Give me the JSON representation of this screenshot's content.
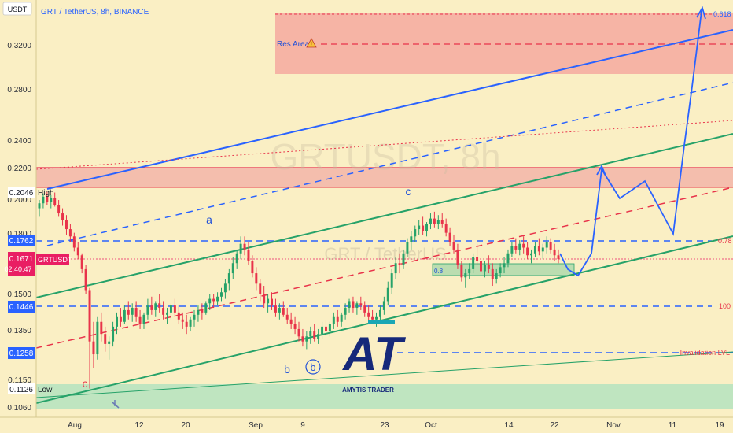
{
  "header": {
    "currency_badge": "USDT",
    "symbol_title": "GRT / TetherUS, 8h, BINANCE"
  },
  "watermark": {
    "big": "GRTUSDT, 8h",
    "small": "GRT / TetherUS"
  },
  "logo": {
    "monogram": "AT",
    "brand": "AMYTIS TRADER"
  },
  "price_axis": {
    "ticks": [
      "0.3200",
      "0.2800",
      "0.2400",
      "0.2200",
      "0.2000",
      "0.1800",
      "0.1500",
      "0.1350",
      "0.1150",
      "0.1060"
    ],
    "labels": [
      {
        "name": "high-price-label",
        "value": "0.2046",
        "caption": "High"
      },
      {
        "name": "fib-078-price-label",
        "value": "0.1762"
      },
      {
        "name": "current-price-label",
        "value": "0.1671",
        "caption": "GRTUSDT",
        "countdown": "02:40:47"
      },
      {
        "name": "fib-100-price-label",
        "value": "0.1446"
      },
      {
        "name": "invalidation-price-label",
        "value": "0.1258"
      },
      {
        "name": "low-price-label",
        "value": "0.1126",
        "caption": "Low"
      }
    ]
  },
  "time_axis": {
    "ticks": [
      "Aug",
      "12",
      "20",
      "Sep",
      "9",
      "23",
      "Oct",
      "14",
      "22",
      "Nov",
      "11",
      "19"
    ]
  },
  "annotations": {
    "res_area": "Res Area",
    "fib_618": "0.618",
    "fib_078": "0.78",
    "fib_100": "100",
    "invalidation": "Invalidation LVL",
    "wave_a": "a",
    "wave_b": "b",
    "wave_b_circled": "b",
    "wave_c_upper": "c",
    "wave_c_lower": "c",
    "box_label": "0.8"
  },
  "colors": {
    "background": "#faefc4",
    "resistance_zone": "#f4a9a0",
    "upper_zone": "#f3b1a7",
    "support_zone": "#b8e3c0",
    "price_tag": "#e91e63",
    "blue": "#2962ff",
    "green": "#26a269",
    "red": "#e8334a"
  },
  "chart_data": {
    "type": "candlestick",
    "symbol": "GRT / TetherUS",
    "interval": "8h",
    "exchange": "BINANCE",
    "quote_currency": "USDT",
    "price_range": [
      0.106,
      0.335
    ],
    "scale": "log",
    "x_ticks": [
      "Aug",
      "12",
      "20",
      "Sep",
      "9",
      "23",
      "Oct",
      "14",
      "22",
      "Nov",
      "11",
      "19"
    ],
    "y_ticks": [
      0.32,
      0.28,
      0.24,
      0.22,
      0.2,
      0.18,
      0.15,
      0.135,
      0.115,
      0.106
    ],
    "high": 0.2046,
    "low": 0.1126,
    "current_price": 0.1671,
    "levels": [
      {
        "name": "fib-0.618",
        "label": "0.618",
        "price": 0.333
      },
      {
        "name": "fib-0.78",
        "label": "0.78",
        "price": 0.1762
      },
      {
        "name": "fib-100",
        "label": "100",
        "price": 0.1446
      },
      {
        "name": "invalidation",
        "label": "Invalidation LVL",
        "price": 0.1258
      }
    ],
    "waves": [
      "a",
      "b",
      "c"
    ],
    "candles": [
      [
        0.195,
        0.2,
        0.19,
        0.198
      ],
      [
        0.198,
        0.204,
        0.195,
        0.202
      ],
      [
        0.202,
        0.205,
        0.197,
        0.199
      ],
      [
        0.199,
        0.203,
        0.195,
        0.201
      ],
      [
        0.201,
        0.2046,
        0.196,
        0.197
      ],
      [
        0.197,
        0.2,
        0.19,
        0.192
      ],
      [
        0.192,
        0.195,
        0.185,
        0.188
      ],
      [
        0.188,
        0.191,
        0.18,
        0.183
      ],
      [
        0.183,
        0.186,
        0.176,
        0.179
      ],
      [
        0.179,
        0.181,
        0.171,
        0.173
      ],
      [
        0.173,
        0.176,
        0.167,
        0.169
      ],
      [
        0.169,
        0.17,
        0.16,
        0.162
      ],
      [
        0.162,
        0.164,
        0.15,
        0.152
      ],
      [
        0.152,
        0.153,
        0.1126,
        0.13
      ],
      [
        0.13,
        0.138,
        0.12,
        0.125
      ],
      [
        0.125,
        0.14,
        0.123,
        0.138
      ],
      [
        0.138,
        0.142,
        0.13,
        0.133
      ],
      [
        0.133,
        0.136,
        0.126,
        0.129
      ],
      [
        0.129,
        0.132,
        0.123,
        0.13
      ],
      [
        0.13,
        0.138,
        0.128,
        0.136
      ],
      [
        0.136,
        0.142,
        0.133,
        0.14
      ],
      [
        0.14,
        0.144,
        0.136,
        0.138
      ],
      [
        0.138,
        0.145,
        0.137,
        0.143
      ],
      [
        0.143,
        0.147,
        0.139,
        0.141
      ],
      [
        0.141,
        0.146,
        0.138,
        0.144
      ],
      [
        0.144,
        0.147,
        0.138,
        0.14
      ],
      [
        0.14,
        0.143,
        0.135,
        0.137
      ],
      [
        0.137,
        0.142,
        0.135,
        0.141
      ],
      [
        0.141,
        0.148,
        0.139,
        0.145
      ],
      [
        0.145,
        0.149,
        0.141,
        0.143
      ],
      [
        0.143,
        0.147,
        0.14,
        0.146
      ],
      [
        0.146,
        0.15,
        0.142,
        0.144
      ],
      [
        0.144,
        0.147,
        0.139,
        0.141
      ],
      [
        0.141,
        0.144,
        0.137,
        0.142
      ],
      [
        0.142,
        0.146,
        0.139,
        0.145
      ],
      [
        0.145,
        0.148,
        0.14,
        0.142
      ],
      [
        0.142,
        0.145,
        0.137,
        0.139
      ],
      [
        0.139,
        0.142,
        0.135,
        0.138
      ],
      [
        0.138,
        0.141,
        0.133,
        0.136
      ],
      [
        0.136,
        0.14,
        0.134,
        0.139
      ],
      [
        0.139,
        0.143,
        0.136,
        0.141
      ],
      [
        0.141,
        0.145,
        0.138,
        0.143
      ],
      [
        0.143,
        0.146,
        0.139,
        0.142
      ],
      [
        0.142,
        0.147,
        0.141,
        0.146
      ],
      [
        0.146,
        0.15,
        0.143,
        0.148
      ],
      [
        0.148,
        0.15,
        0.144,
        0.147
      ],
      [
        0.147,
        0.151,
        0.145,
        0.149
      ],
      [
        0.149,
        0.153,
        0.147,
        0.151
      ],
      [
        0.151,
        0.157,
        0.148,
        0.155
      ],
      [
        0.155,
        0.162,
        0.152,
        0.16
      ],
      [
        0.16,
        0.168,
        0.157,
        0.165
      ],
      [
        0.165,
        0.172,
        0.162,
        0.17
      ],
      [
        0.17,
        0.179,
        0.167,
        0.175
      ],
      [
        0.175,
        0.179,
        0.169,
        0.172
      ],
      [
        0.172,
        0.176,
        0.164,
        0.166
      ],
      [
        0.166,
        0.169,
        0.158,
        0.16
      ],
      [
        0.16,
        0.163,
        0.152,
        0.155
      ],
      [
        0.155,
        0.157,
        0.147,
        0.15
      ],
      [
        0.15,
        0.154,
        0.144,
        0.146
      ],
      [
        0.146,
        0.15,
        0.142,
        0.148
      ],
      [
        0.148,
        0.151,
        0.143,
        0.145
      ],
      [
        0.145,
        0.148,
        0.14,
        0.142
      ],
      [
        0.142,
        0.146,
        0.139,
        0.144
      ],
      [
        0.144,
        0.147,
        0.14,
        0.141
      ],
      [
        0.141,
        0.144,
        0.137,
        0.139
      ],
      [
        0.139,
        0.142,
        0.135,
        0.137
      ],
      [
        0.137,
        0.14,
        0.133,
        0.135
      ],
      [
        0.135,
        0.138,
        0.13,
        0.132
      ],
      [
        0.132,
        0.135,
        0.128,
        0.13
      ],
      [
        0.13,
        0.134,
        0.127,
        0.132
      ],
      [
        0.132,
        0.136,
        0.129,
        0.134
      ],
      [
        0.134,
        0.137,
        0.13,
        0.131
      ],
      [
        0.131,
        0.135,
        0.129,
        0.133
      ],
      [
        0.133,
        0.138,
        0.131,
        0.136
      ],
      [
        0.136,
        0.139,
        0.132,
        0.134
      ],
      [
        0.134,
        0.138,
        0.132,
        0.137
      ],
      [
        0.137,
        0.142,
        0.135,
        0.14
      ],
      [
        0.14,
        0.143,
        0.136,
        0.138
      ],
      [
        0.138,
        0.142,
        0.136,
        0.141
      ],
      [
        0.141,
        0.146,
        0.139,
        0.144
      ],
      [
        0.144,
        0.148,
        0.142,
        0.147
      ],
      [
        0.147,
        0.149,
        0.142,
        0.144
      ],
      [
        0.144,
        0.147,
        0.141,
        0.146
      ],
      [
        0.146,
        0.149,
        0.143,
        0.145
      ],
      [
        0.145,
        0.147,
        0.14,
        0.142
      ],
      [
        0.142,
        0.145,
        0.138,
        0.14
      ],
      [
        0.14,
        0.143,
        0.137,
        0.139
      ],
      [
        0.139,
        0.142,
        0.136,
        0.14
      ],
      [
        0.14,
        0.145,
        0.138,
        0.143
      ],
      [
        0.143,
        0.149,
        0.141,
        0.147
      ],
      [
        0.147,
        0.156,
        0.145,
        0.153
      ],
      [
        0.153,
        0.162,
        0.15,
        0.16
      ],
      [
        0.16,
        0.168,
        0.157,
        0.165
      ],
      [
        0.165,
        0.17,
        0.16,
        0.164
      ],
      [
        0.164,
        0.172,
        0.162,
        0.17
      ],
      [
        0.17,
        0.178,
        0.168,
        0.176
      ],
      [
        0.176,
        0.182,
        0.172,
        0.179
      ],
      [
        0.179,
        0.185,
        0.176,
        0.183
      ],
      [
        0.183,
        0.188,
        0.18,
        0.185
      ],
      [
        0.185,
        0.19,
        0.18,
        0.182
      ],
      [
        0.182,
        0.187,
        0.179,
        0.186
      ],
      [
        0.186,
        0.192,
        0.183,
        0.189
      ],
      [
        0.189,
        0.193,
        0.184,
        0.186
      ],
      [
        0.186,
        0.191,
        0.183,
        0.188
      ],
      [
        0.188,
        0.192,
        0.184,
        0.186
      ],
      [
        0.186,
        0.189,
        0.179,
        0.181
      ],
      [
        0.181,
        0.184,
        0.174,
        0.176
      ],
      [
        0.176,
        0.18,
        0.17,
        0.172
      ],
      [
        0.172,
        0.175,
        0.162,
        0.164
      ],
      [
        0.164,
        0.166,
        0.156,
        0.158
      ],
      [
        0.158,
        0.162,
        0.153,
        0.16
      ],
      [
        0.16,
        0.165,
        0.157,
        0.162
      ],
      [
        0.162,
        0.17,
        0.16,
        0.168
      ],
      [
        0.168,
        0.175,
        0.164,
        0.166
      ],
      [
        0.166,
        0.169,
        0.159,
        0.161
      ],
      [
        0.161,
        0.166,
        0.158,
        0.164
      ],
      [
        0.164,
        0.169,
        0.16,
        0.162
      ],
      [
        0.162,
        0.165,
        0.154,
        0.157
      ],
      [
        0.157,
        0.162,
        0.155,
        0.16
      ],
      [
        0.16,
        0.165,
        0.158,
        0.163
      ],
      [
        0.163,
        0.168,
        0.16,
        0.165
      ],
      [
        0.165,
        0.172,
        0.163,
        0.17
      ],
      [
        0.17,
        0.176,
        0.168,
        0.174
      ],
      [
        0.174,
        0.178,
        0.17,
        0.172
      ],
      [
        0.172,
        0.177,
        0.169,
        0.175
      ],
      [
        0.175,
        0.179,
        0.17,
        0.173
      ],
      [
        0.173,
        0.176,
        0.167,
        0.169
      ],
      [
        0.169,
        0.172,
        0.165,
        0.17
      ],
      [
        0.17,
        0.176,
        0.168,
        0.174
      ],
      [
        0.174,
        0.178,
        0.169,
        0.171
      ],
      [
        0.171,
        0.175,
        0.167,
        0.173
      ],
      [
        0.173,
        0.179,
        0.17,
        0.176
      ],
      [
        0.176,
        0.178,
        0.17,
        0.172
      ],
      [
        0.172,
        0.175,
        0.166,
        0.169
      ],
      [
        0.169,
        0.172,
        0.165,
        0.1671
      ]
    ]
  }
}
